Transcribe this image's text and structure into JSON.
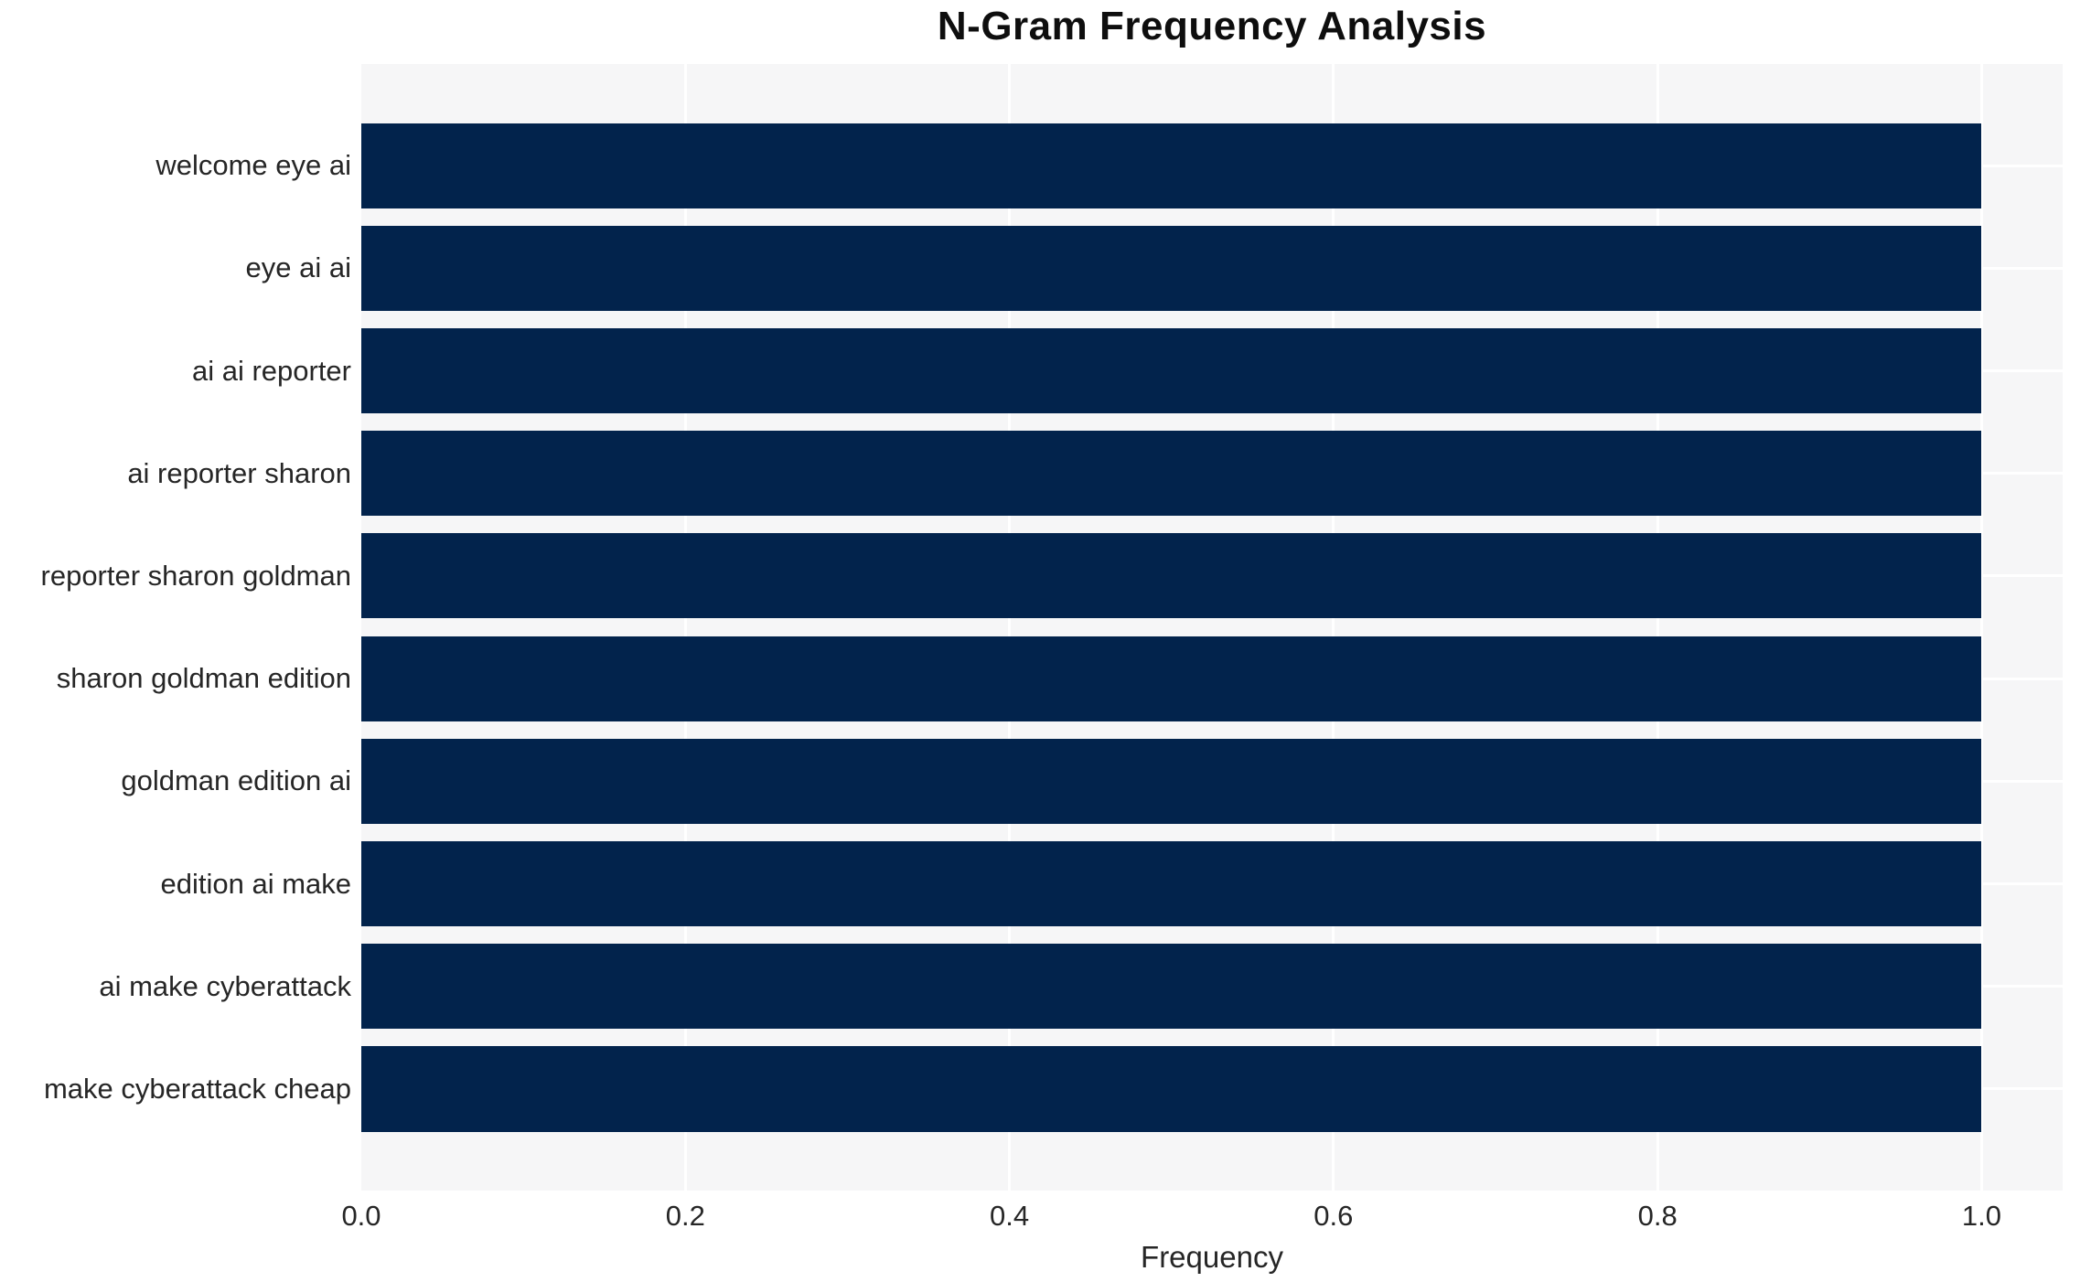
{
  "chart_data": {
    "type": "bar",
    "orientation": "horizontal",
    "title": "N-Gram Frequency Analysis",
    "xlabel": "Frequency",
    "ylabel": "",
    "categories": [
      "welcome eye ai",
      "eye ai ai",
      "ai ai reporter",
      "ai reporter sharon",
      "reporter sharon goldman",
      "sharon goldman edition",
      "goldman edition ai",
      "edition ai make",
      "ai make cyberattack",
      "make cyberattack cheap"
    ],
    "values": [
      1.0,
      1.0,
      1.0,
      1.0,
      1.0,
      1.0,
      1.0,
      1.0,
      1.0,
      1.0
    ],
    "xlim": [
      0,
      1.05
    ],
    "xticks": [
      0.0,
      0.2,
      0.4,
      0.6,
      0.8,
      1.0
    ],
    "xtick_labels": [
      "0.0",
      "0.2",
      "0.4",
      "0.6",
      "0.8",
      "1.0"
    ],
    "grid": true,
    "legend": false,
    "colors": {
      "bar": "#02234c",
      "plot_background": "#f6f6f7",
      "figure_background": "#ffffff",
      "gridline": "#ffffff",
      "tick_text": "#262626",
      "title_text": "#0e0e0e"
    }
  }
}
